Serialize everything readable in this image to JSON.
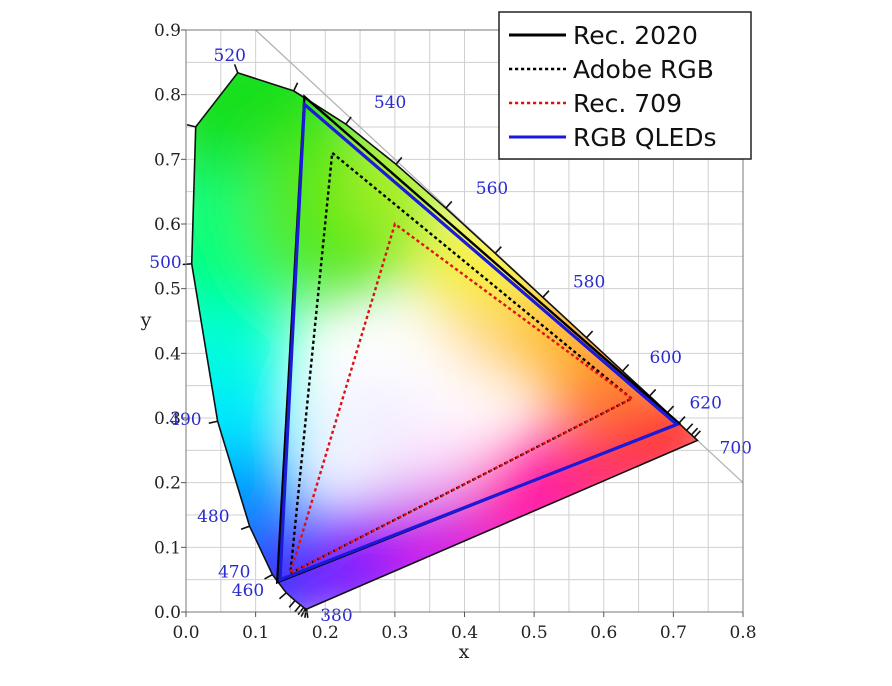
{
  "chart_data": {
    "type": "line",
    "xlabel": "x",
    "ylabel": "y",
    "xlim": [
      0.0,
      0.8
    ],
    "ylim": [
      0.0,
      0.9
    ],
    "grid": true,
    "legend_position": "top-right",
    "x_ticks": [
      "0.0",
      "0.1",
      "0.2",
      "0.3",
      "0.4",
      "0.5",
      "0.6",
      "0.7",
      "0.8"
    ],
    "y_ticks": [
      "0.0",
      "0.1",
      "0.2",
      "0.3",
      "0.4",
      "0.5",
      "0.6",
      "0.7",
      "0.8",
      "0.9"
    ],
    "spectral_locus": [
      [
        0.1741,
        0.005
      ],
      [
        0.1733,
        0.0048
      ],
      [
        0.1726,
        0.0048
      ],
      [
        0.1714,
        0.0051
      ],
      [
        0.1689,
        0.0069
      ],
      [
        0.1644,
        0.0109
      ],
      [
        0.1566,
        0.0177
      ],
      [
        0.144,
        0.0297
      ],
      [
        0.1241,
        0.0578
      ],
      [
        0.0913,
        0.1327
      ],
      [
        0.0454,
        0.295
      ],
      [
        0.0082,
        0.5384
      ],
      [
        0.0139,
        0.7502
      ],
      [
        0.0743,
        0.8338
      ],
      [
        0.1547,
        0.8059
      ],
      [
        0.2296,
        0.7543
      ],
      [
        0.3016,
        0.6923
      ],
      [
        0.3731,
        0.6245
      ],
      [
        0.4441,
        0.5547
      ],
      [
        0.5125,
        0.4866
      ],
      [
        0.5752,
        0.4242
      ],
      [
        0.627,
        0.3725
      ],
      [
        0.6658,
        0.334
      ],
      [
        0.6915,
        0.3083
      ],
      [
        0.7079,
        0.292
      ],
      [
        0.719,
        0.2809
      ],
      [
        0.726,
        0.274
      ],
      [
        0.73,
        0.27
      ],
      [
        0.7347,
        0.2653
      ]
    ],
    "wavelength_labels": [
      {
        "label": "380",
        "x": 0.1741,
        "y": 0.005
      },
      {
        "label": "460",
        "x": 0.144,
        "y": 0.0297
      },
      {
        "label": "470",
        "x": 0.1241,
        "y": 0.0578
      },
      {
        "label": "480",
        "x": 0.0913,
        "y": 0.1327
      },
      {
        "label": "490",
        "x": 0.0454,
        "y": 0.295
      },
      {
        "label": "500",
        "x": 0.0082,
        "y": 0.5384
      },
      {
        "label": "520",
        "x": 0.0743,
        "y": 0.8338
      },
      {
        "label": "540",
        "x": 0.2296,
        "y": 0.7543
      },
      {
        "label": "560",
        "x": 0.3731,
        "y": 0.6245
      },
      {
        "label": "580",
        "x": 0.5125,
        "y": 0.4866
      },
      {
        "label": "600",
        "x": 0.627,
        "y": 0.3725
      },
      {
        "label": "620",
        "x": 0.6915,
        "y": 0.3083
      },
      {
        "label": "700",
        "x": 0.7347,
        "y": 0.2653
      }
    ],
    "series": [
      {
        "name": "Rec. 2020",
        "color": "#000000",
        "dash": "solid",
        "points": [
          [
            0.708,
            0.292
          ],
          [
            0.17,
            0.797
          ],
          [
            0.131,
            0.046
          ]
        ]
      },
      {
        "name": "Adobe RGB",
        "color": "#000000",
        "dash": "dotted",
        "points": [
          [
            0.64,
            0.33
          ],
          [
            0.21,
            0.71
          ],
          [
            0.15,
            0.06
          ]
        ]
      },
      {
        "name": "Rec. 709",
        "color": "#e01010",
        "dash": "dotted",
        "points": [
          [
            0.64,
            0.33
          ],
          [
            0.3,
            0.6
          ],
          [
            0.15,
            0.06
          ]
        ]
      },
      {
        "name": "RGB QLEDs",
        "color": "#1a1ad8",
        "dash": "solid",
        "points": [
          [
            0.705,
            0.29
          ],
          [
            0.17,
            0.785
          ],
          [
            0.135,
            0.05
          ]
        ]
      }
    ]
  }
}
